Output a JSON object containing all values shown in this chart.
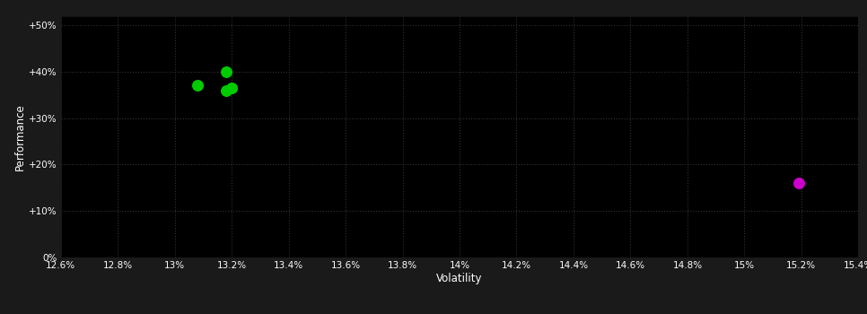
{
  "background_color": "#1a1a1a",
  "plot_bg_color": "#000000",
  "grid_color": "#333333",
  "grid_linestyle": ":",
  "text_color": "#ffffff",
  "xlabel": "Volatility",
  "ylabel": "Performance",
  "xlim": [
    0.126,
    0.154
  ],
  "ylim": [
    0.0,
    0.52
  ],
  "xtick_values": [
    0.126,
    0.128,
    0.13,
    0.132,
    0.134,
    0.136,
    0.138,
    0.14,
    0.142,
    0.144,
    0.146,
    0.148,
    0.15,
    0.152,
    0.154
  ],
  "ytick_values": [
    0.0,
    0.1,
    0.2,
    0.3,
    0.4,
    0.5
  ],
  "ytick_labels": [
    "0%",
    "+10%",
    "+20%",
    "+30%",
    "+40%",
    "+50%"
  ],
  "xtick_labels": [
    "12.6%",
    "12.8%",
    "13%",
    "13.2%",
    "13.4%",
    "13.6%",
    "13.8%",
    "14%",
    "14.2%",
    "14.4%",
    "14.6%",
    "14.8%",
    "15%",
    "15.2%",
    "15.4%"
  ],
  "green_points": [
    [
      0.1308,
      0.37
    ],
    [
      0.1318,
      0.358
    ],
    [
      0.132,
      0.365
    ],
    [
      0.1318,
      0.4
    ]
  ],
  "magenta_points": [
    [
      0.1519,
      0.16
    ]
  ],
  "green_color": "#00cc00",
  "magenta_color": "#cc00cc",
  "marker_size": 5
}
